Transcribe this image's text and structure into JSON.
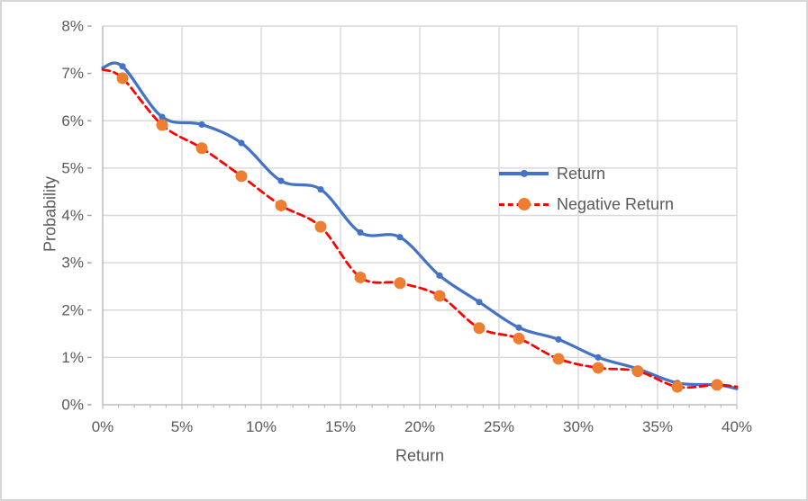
{
  "chart_data": {
    "type": "line",
    "title": "",
    "xlabel": "Return",
    "ylabel": "Probability",
    "xlim": [
      0,
      40
    ],
    "ylim": [
      0,
      8
    ],
    "x_tick_labels": [
      "0%",
      "5%",
      "10%",
      "15%",
      "20%",
      "25%",
      "30%",
      "35%",
      "40%"
    ],
    "x_tick_values": [
      0,
      5,
      10,
      15,
      20,
      25,
      30,
      35,
      40
    ],
    "y_tick_labels": [
      "0%",
      "1%",
      "2%",
      "3%",
      "4%",
      "5%",
      "6%",
      "7%",
      "8%"
    ],
    "y_tick_values": [
      0,
      1,
      2,
      3,
      4,
      5,
      6,
      7,
      8
    ],
    "grid": true,
    "smoothed": true,
    "markers_on_endpoints": false,
    "legend_position": "middle-right",
    "grid_color": "#d9d9d9",
    "axis_color": "#bfbfbf",
    "tick_color": "#9b9b9b",
    "text_color": "#595959",
    "x": [
      0,
      1.25,
      3.75,
      6.25,
      8.75,
      11.25,
      13.75,
      16.25,
      18.75,
      21.25,
      23.75,
      26.25,
      28.75,
      31.25,
      33.75,
      36.25,
      38.75,
      40
    ],
    "series": [
      {
        "name": "Return",
        "line_color": "#4472c4",
        "line_style": "solid",
        "line_width": 3.25,
        "marker_color": "#4472c4",
        "marker_radius": 3.6,
        "values": [
          7.12,
          7.15,
          6.08,
          5.92,
          5.53,
          4.73,
          4.55,
          3.64,
          3.54,
          2.73,
          2.17,
          1.63,
          1.38,
          1.0,
          0.76,
          0.46,
          0.42,
          0.34
        ]
      },
      {
        "name": "Negative Return",
        "line_color": "#ff0000",
        "line_style": "dashed",
        "line_width": 2.75,
        "marker_color": "#ed7d31",
        "marker_radius": 6.5,
        "values": [
          7.08,
          6.9,
          5.91,
          5.42,
          4.83,
          4.21,
          3.76,
          2.69,
          2.57,
          2.3,
          1.62,
          1.4,
          0.97,
          0.78,
          0.71,
          0.38,
          0.42,
          0.38
        ]
      }
    ]
  }
}
